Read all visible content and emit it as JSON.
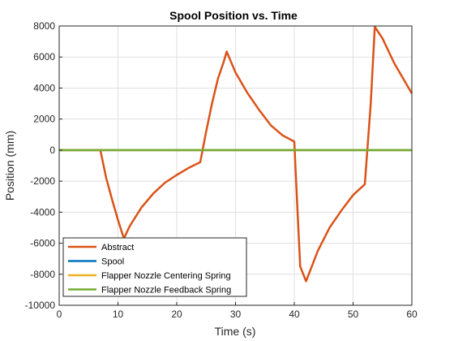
{
  "chart_data": {
    "type": "line",
    "title": "Spool Position vs. Time",
    "xlabel": "Time (s)",
    "ylabel": "Position (mm)",
    "xlim": [
      0,
      60
    ],
    "ylim": [
      -10000,
      8000
    ],
    "xticks": [
      0,
      10,
      20,
      30,
      40,
      50,
      60
    ],
    "yticks": [
      -10000,
      -8000,
      -6000,
      -4000,
      -2000,
      0,
      2000,
      4000,
      6000,
      8000
    ],
    "grid": true,
    "legend_position": "bottom-left",
    "series": [
      {
        "name": "Abstract",
        "color": "#D95319",
        "x": [
          0,
          7,
          8,
          9,
          10,
          11,
          12,
          14,
          16,
          18,
          20,
          22,
          24,
          25,
          26,
          27,
          28,
          28.5,
          30,
          32,
          34,
          36,
          38,
          40,
          40.5,
          41,
          42,
          44,
          46,
          48,
          50,
          52,
          53,
          53.7,
          55,
          57,
          60
        ],
        "y": [
          0,
          0,
          -1800,
          -3200,
          -4500,
          -5700,
          -4900,
          -3700,
          -2800,
          -2100,
          -1600,
          -1150,
          -780,
          1200,
          3000,
          4600,
          5700,
          6350,
          5000,
          3700,
          2600,
          1600,
          950,
          550,
          -3500,
          -7500,
          -8450,
          -6500,
          -5000,
          -3900,
          -2900,
          -2200,
          3000,
          7950,
          7200,
          5600,
          3650
        ]
      },
      {
        "name": "Spool",
        "color": "#0072BD",
        "x": [
          0,
          60
        ],
        "y": [
          0,
          0
        ]
      },
      {
        "name": "Flapper Nozzle Centering Spring",
        "color": "#EDB120",
        "x": [
          0,
          60
        ],
        "y": [
          0,
          0
        ]
      },
      {
        "name": "Flapper Nozzle Feedback Spring",
        "color": "#77AC30",
        "x": [
          0,
          60
        ],
        "y": [
          0,
          0
        ]
      }
    ]
  }
}
